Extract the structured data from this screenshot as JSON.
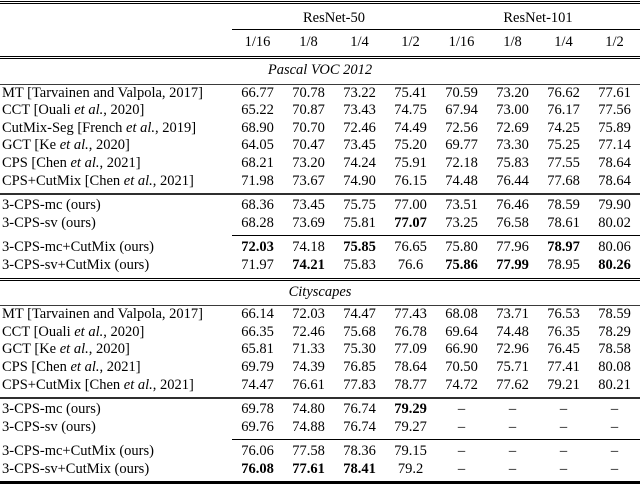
{
  "colors": {
    "text": "#000000",
    "background": "#ffffff",
    "rule": "#000000"
  },
  "header": {
    "groups": [
      "ResNet-50",
      "ResNet-101"
    ],
    "ratios": [
      "1/16",
      "1/8",
      "1/4",
      "1/2",
      "1/16",
      "1/8",
      "1/4",
      "1/2"
    ]
  },
  "sections": [
    {
      "label": "Pascal VOC 2012",
      "blocks": [
        {
          "rows": [
            {
              "method": [
                {
                  "t": "MT [Tarvainen and Valpola, 2017]",
                  "i": false
                }
              ],
              "values": [
                "66.77",
                "70.78",
                "73.22",
                "75.41",
                "70.59",
                "73.20",
                "76.62",
                "77.61"
              ],
              "bold": []
            },
            {
              "method": [
                {
                  "t": "CCT [Ouali ",
                  "i": false
                },
                {
                  "t": "et al.",
                  "i": true
                },
                {
                  "t": ", 2020]",
                  "i": false
                }
              ],
              "values": [
                "65.22",
                "70.87",
                "73.43",
                "74.75",
                "67.94",
                "73.00",
                "76.17",
                "77.56"
              ],
              "bold": []
            },
            {
              "method": [
                {
                  "t": "CutMix-Seg [French ",
                  "i": false
                },
                {
                  "t": "et al.",
                  "i": true
                },
                {
                  "t": ", 2019]",
                  "i": false
                }
              ],
              "values": [
                "68.90",
                "70.70",
                "72.46",
                "74.49",
                "72.56",
                "72.69",
                "74.25",
                "75.89"
              ],
              "bold": []
            },
            {
              "method": [
                {
                  "t": "GCT [Ke ",
                  "i": false
                },
                {
                  "t": "et al.",
                  "i": true
                },
                {
                  "t": ", 2020]",
                  "i": false
                }
              ],
              "values": [
                "64.05",
                "70.47",
                "73.45",
                "75.20",
                "69.77",
                "73.30",
                "75.25",
                "77.14"
              ],
              "bold": []
            },
            {
              "method": [
                {
                  "t": "CPS [Chen ",
                  "i": false
                },
                {
                  "t": "et al.",
                  "i": true
                },
                {
                  "t": ", 2021]",
                  "i": false
                }
              ],
              "values": [
                "68.21",
                "73.20",
                "74.24",
                "75.91",
                "72.18",
                "75.83",
                "77.55",
                "78.64"
              ],
              "bold": []
            },
            {
              "method": [
                {
                  "t": "CPS+CutMix [Chen ",
                  "i": false
                },
                {
                  "t": "et al.",
                  "i": true
                },
                {
                  "t": ", 2021]",
                  "i": false
                }
              ],
              "values": [
                "71.98",
                "73.67",
                "74.90",
                "76.15",
                "74.48",
                "76.44",
                "77.68",
                "78.64"
              ],
              "bold": []
            }
          ]
        },
        {
          "rows": [
            {
              "method": [
                {
                  "t": "3-CPS-mc (ours)",
                  "i": false
                }
              ],
              "values": [
                "68.36",
                "73.45",
                "75.75",
                "77.00",
                "73.51",
                "76.46",
                "78.59",
                "79.90"
              ],
              "bold": []
            },
            {
              "method": [
                {
                  "t": "3-CPS-sv (ours)",
                  "i": false
                }
              ],
              "values": [
                "68.28",
                "73.69",
                "75.81",
                "77.07",
                "73.25",
                "76.58",
                "78.61",
                "80.02"
              ],
              "bold": [
                3
              ]
            }
          ]
        },
        {
          "rows": [
            {
              "method": [
                {
                  "t": "3-CPS-mc+CutMix (ours)",
                  "i": false
                }
              ],
              "values": [
                "72.03",
                "74.18",
                "75.85",
                "76.65",
                "75.80",
                "77.96",
                "78.97",
                "80.06"
              ],
              "bold": [
                0,
                2,
                6
              ]
            },
            {
              "method": [
                {
                  "t": "3-CPS-sv+CutMix (ours)",
                  "i": false
                }
              ],
              "values": [
                "71.97",
                "74.21",
                "75.83",
                "76.6",
                "75.86",
                "77.99",
                "78.95",
                "80.26"
              ],
              "bold": [
                1,
                4,
                5,
                7
              ]
            }
          ]
        }
      ]
    },
    {
      "label": "Cityscapes",
      "blocks": [
        {
          "rows": [
            {
              "method": [
                {
                  "t": "MT [Tarvainen and Valpola, 2017]",
                  "i": false
                }
              ],
              "values": [
                "66.14",
                "72.03",
                "74.47",
                "77.43",
                "68.08",
                "73.71",
                "76.53",
                "78.59"
              ],
              "bold": []
            },
            {
              "method": [
                {
                  "t": "CCT [Ouali ",
                  "i": false
                },
                {
                  "t": "et al.",
                  "i": true
                },
                {
                  "t": ", 2020]",
                  "i": false
                }
              ],
              "values": [
                "66.35",
                "72.46",
                "75.68",
                "76.78",
                "69.64",
                "74.48",
                "76.35",
                "78.29"
              ],
              "bold": []
            },
            {
              "method": [
                {
                  "t": "GCT [Ke ",
                  "i": false
                },
                {
                  "t": "et al.",
                  "i": true
                },
                {
                  "t": ", 2020]",
                  "i": false
                }
              ],
              "values": [
                "65.81",
                "71.33",
                "75.30",
                "77.09",
                "66.90",
                "72.96",
                "76.45",
                "78.58"
              ],
              "bold": []
            },
            {
              "method": [
                {
                  "t": "CPS [Chen ",
                  "i": false
                },
                {
                  "t": "et al.",
                  "i": true
                },
                {
                  "t": ", 2021]",
                  "i": false
                }
              ],
              "values": [
                "69.79",
                "74.39",
                "76.85",
                "78.64",
                "70.50",
                "75.71",
                "77.41",
                "80.08"
              ],
              "bold": []
            },
            {
              "method": [
                {
                  "t": "CPS+CutMix [Chen ",
                  "i": false
                },
                {
                  "t": "et al.",
                  "i": true
                },
                {
                  "t": ", 2021]",
                  "i": false
                }
              ],
              "values": [
                "74.47",
                "76.61",
                "77.83",
                "78.77",
                "74.72",
                "77.62",
                "79.21",
                "80.21"
              ],
              "bold": []
            }
          ]
        },
        {
          "rows": [
            {
              "method": [
                {
                  "t": "3-CPS-mc (ours)",
                  "i": false
                }
              ],
              "values": [
                "69.78",
                "74.80",
                "76.74",
                "79.29",
                "–",
                "–",
                "–",
                "–"
              ],
              "bold": [
                3
              ]
            },
            {
              "method": [
                {
                  "t": "3-CPS-sv (ours)",
                  "i": false
                }
              ],
              "values": [
                "69.76",
                "74.88",
                "76.74",
                "79.27",
                "–",
                "–",
                "–",
                "–"
              ],
              "bold": []
            }
          ]
        },
        {
          "rows": [
            {
              "method": [
                {
                  "t": "3-CPS-mc+CutMix (ours)",
                  "i": false
                }
              ],
              "values": [
                "76.06",
                "77.58",
                "78.36",
                "79.15",
                "–",
                "–",
                "–",
                "–"
              ],
              "bold": []
            },
            {
              "method": [
                {
                  "t": "3-CPS-sv+CutMix (ours)",
                  "i": false
                }
              ],
              "values": [
                "76.08",
                "77.61",
                "78.41",
                "79.2",
                "–",
                "–",
                "–",
                "–"
              ],
              "bold": [
                0,
                1,
                2
              ]
            }
          ]
        }
      ]
    }
  ]
}
